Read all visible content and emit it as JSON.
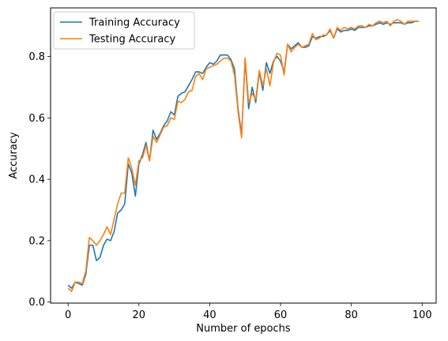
{
  "chart_data": {
    "type": "line",
    "title": "",
    "xlabel": "Number of epochs",
    "ylabel": "Accuracy",
    "xlim": [
      -4.95,
      103.95
    ],
    "ylim": [
      -0.0035,
      0.9585
    ],
    "x_ticks": [
      0,
      20,
      40,
      60,
      80,
      100
    ],
    "y_ticks": [
      0.0,
      0.2,
      0.4,
      0.6,
      0.8
    ],
    "y_tick_labels": [
      "0.0",
      "0.2",
      "0.4",
      "0.6",
      "0.8"
    ],
    "grid": false,
    "legend": "top-left",
    "x_start": 0,
    "x_step": 1,
    "series": [
      {
        "name": "Training Accuracy",
        "color": "#1f77b4",
        "values": [
          0.055,
          0.045,
          0.065,
          0.06,
          0.055,
          0.09,
          0.185,
          0.185,
          0.135,
          0.145,
          0.185,
          0.205,
          0.2,
          0.23,
          0.29,
          0.3,
          0.32,
          0.45,
          0.42,
          0.345,
          0.45,
          0.48,
          0.52,
          0.46,
          0.56,
          0.53,
          0.55,
          0.575,
          0.59,
          0.62,
          0.61,
          0.67,
          0.68,
          0.685,
          0.705,
          0.725,
          0.75,
          0.75,
          0.745,
          0.765,
          0.78,
          0.775,
          0.785,
          0.805,
          0.805,
          0.805,
          0.79,
          0.76,
          0.63,
          0.545,
          0.79,
          0.63,
          0.7,
          0.65,
          0.75,
          0.69,
          0.78,
          0.745,
          0.785,
          0.8,
          0.785,
          0.75,
          0.84,
          0.825,
          0.835,
          0.845,
          0.83,
          0.83,
          0.835,
          0.865,
          0.86,
          0.865,
          0.865,
          0.87,
          0.885,
          0.86,
          0.89,
          0.88,
          0.885,
          0.885,
          0.89,
          0.885,
          0.895,
          0.895,
          0.895,
          0.9,
          0.9,
          0.905,
          0.91,
          0.905,
          0.91,
          0.905,
          0.91,
          0.91,
          0.91,
          0.905,
          0.91,
          0.91,
          0.915,
          0.915
        ]
      },
      {
        "name": "Testing Accuracy",
        "color": "#ff7f0e",
        "values": [
          0.045,
          0.035,
          0.065,
          0.065,
          0.06,
          0.1,
          0.21,
          0.2,
          0.185,
          0.2,
          0.22,
          0.245,
          0.22,
          0.27,
          0.32,
          0.355,
          0.355,
          0.47,
          0.435,
          0.38,
          0.46,
          0.47,
          0.51,
          0.46,
          0.54,
          0.52,
          0.545,
          0.57,
          0.575,
          0.6,
          0.595,
          0.655,
          0.65,
          0.66,
          0.685,
          0.69,
          0.735,
          0.745,
          0.725,
          0.76,
          0.765,
          0.77,
          0.775,
          0.785,
          0.795,
          0.795,
          0.785,
          0.74,
          0.62,
          0.535,
          0.795,
          0.65,
          0.68,
          0.66,
          0.755,
          0.705,
          0.76,
          0.705,
          0.78,
          0.81,
          0.805,
          0.74,
          0.84,
          0.815,
          0.83,
          0.84,
          0.83,
          0.835,
          0.84,
          0.875,
          0.855,
          0.86,
          0.87,
          0.87,
          0.89,
          0.86,
          0.895,
          0.885,
          0.895,
          0.89,
          0.895,
          0.89,
          0.9,
          0.9,
          0.895,
          0.905,
          0.9,
          0.91,
          0.915,
          0.91,
          0.915,
          0.9,
          0.915,
          0.92,
          0.915,
          0.905,
          0.915,
          0.915,
          0.915,
          0.915
        ]
      }
    ]
  }
}
